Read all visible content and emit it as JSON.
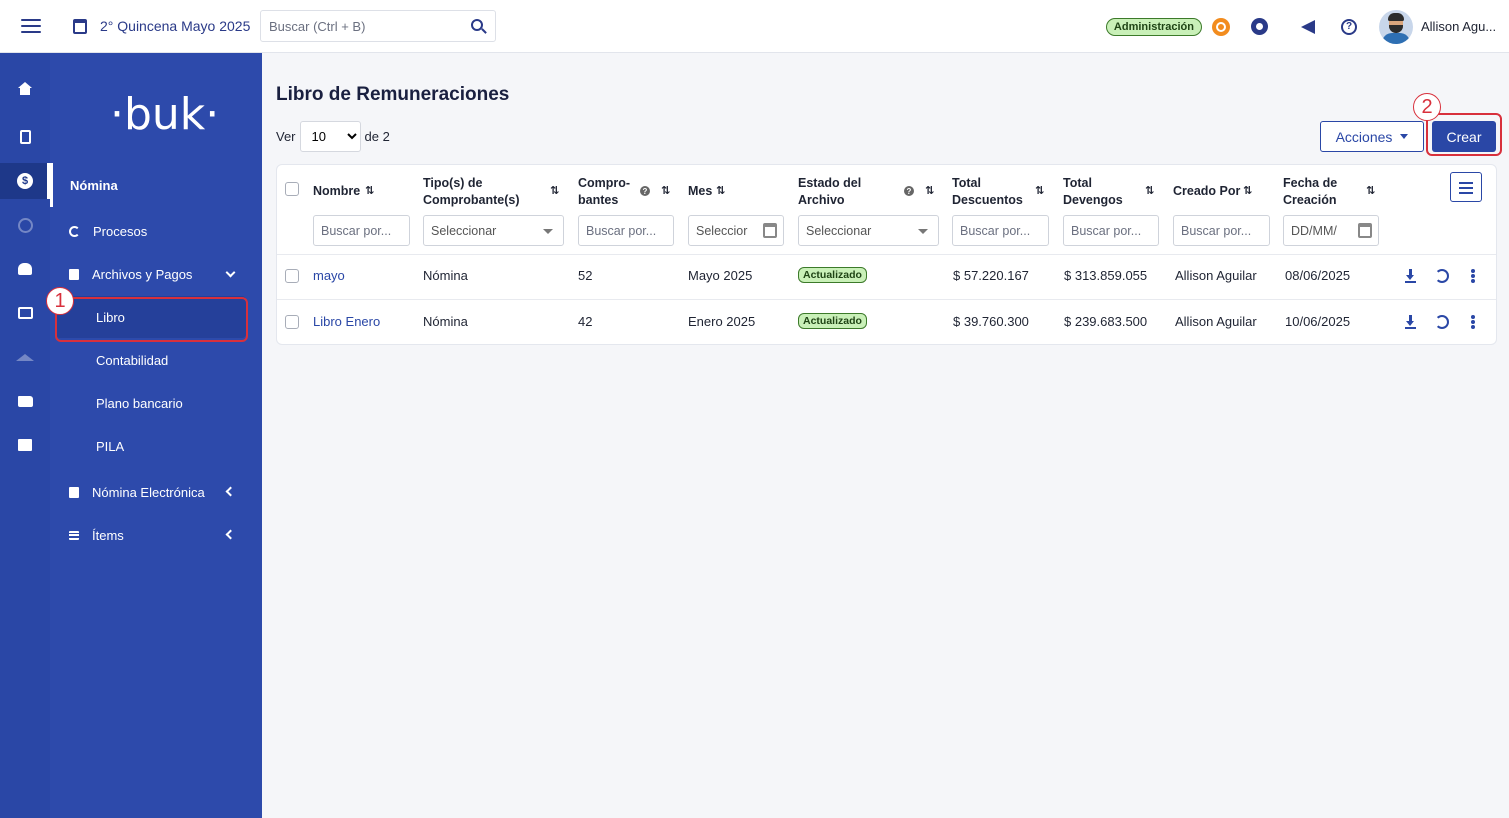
{
  "topbar": {
    "period": "2° Quincena Mayo 2025",
    "search_placeholder": "Buscar (Ctrl + B)",
    "admin_badge": "Administración",
    "user_name": "Allison Agu..."
  },
  "sidebar": {
    "logo": "·buk·",
    "section": "Nómina",
    "items": {
      "procesos": "Procesos",
      "archivos": "Archivos y Pagos",
      "libro": "Libro",
      "contabilidad": "Contabilidad",
      "plano": "Plano bancario",
      "pila": "PILA",
      "nomina_electronica": "Nómina Electrónica",
      "items": "Ítems"
    }
  },
  "annotations": {
    "one": "1",
    "two": "2"
  },
  "main": {
    "title": "Libro de Remuneraciones",
    "pager_ver": "Ver",
    "pager_value": "10",
    "pager_of": "de 2",
    "acciones": "Acciones",
    "crear": "Crear"
  },
  "table": {
    "headers": {
      "nombre": "Nombre",
      "tipo1": "Tipo(s) de",
      "tipo2": "Comprobante(s)",
      "compro1": "Compro-",
      "compro2": "bantes",
      "mes": "Mes",
      "estado1": "Estado del",
      "estado2": "Archivo",
      "desc1": "Total",
      "desc2": "Descuentos",
      "dev1": "Total",
      "dev2": "Devengos",
      "creado": "Creado Por",
      "fecha1": "Fecha de",
      "fecha2": "Creación"
    },
    "filters": {
      "buscar": "Buscar por...",
      "seleccionar": "Seleccionar",
      "mes": "Seleccior",
      "fecha": "DD/MM/"
    },
    "rows": [
      {
        "nombre": "mayo",
        "tipo": "Nómina",
        "comprobantes": "52",
        "mes": "Mayo 2025",
        "estado": "Actualizado",
        "descuentos": "$ 57.220.167",
        "devengos": "$ 313.859.055",
        "creado": "Allison Aguilar",
        "fecha": "08/06/2025"
      },
      {
        "nombre": "Libro Enero",
        "tipo": "Nómina",
        "comprobantes": "42",
        "mes": "Enero 2025",
        "estado": "Actualizado",
        "descuentos": "$ 39.760.300",
        "devengos": "$ 239.683.500",
        "creado": "Allison Aguilar",
        "fecha": "10/06/2025"
      }
    ]
  }
}
